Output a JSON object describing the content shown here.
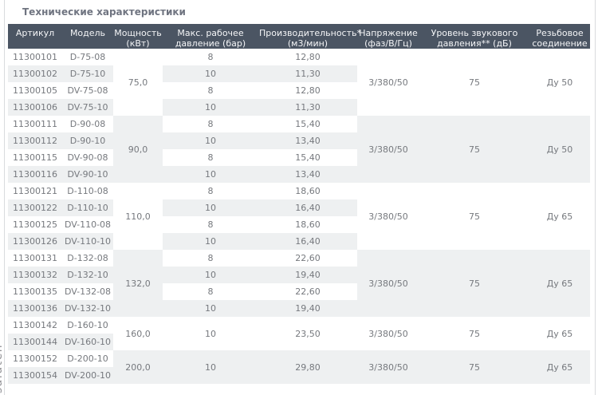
{
  "page": {
    "title": "Технические характеристики",
    "watermark": "saluteh"
  },
  "colors": {
    "header_bg": "#4b5563",
    "header_text": "#f4f5f7",
    "row_bg": "#ffffff",
    "row_alt_bg": "#eef0f1",
    "body_text": "#76797e",
    "title_text": "#6f7480",
    "page_border": "#d9dbdd",
    "watermark_text": "#909094"
  },
  "table": {
    "columns": [
      {
        "id": "article",
        "label": "Артикул"
      },
      {
        "id": "model",
        "label": "Модель"
      },
      {
        "id": "power",
        "label": "Мощность\n(кВт)"
      },
      {
        "id": "pressure",
        "label": "Макс. рабочее\nдавление (бар)"
      },
      {
        "id": "capacity",
        "label": "Производительность*\n(м3/мин)"
      },
      {
        "id": "voltage",
        "label": "Напряжение\n(фаз/В/Гц)"
      },
      {
        "id": "noise",
        "label": "Уровень звукового\nдавления** (дБ)"
      },
      {
        "id": "connection",
        "label": "Резьбовое\nсоединение"
      }
    ],
    "groups": [
      {
        "power": "75,0",
        "voltage": "3/380/50",
        "noise": "75",
        "connection": "Ду 50",
        "shaded": false,
        "rows": [
          {
            "article": "11300101",
            "model": "D-75-08",
            "pressure": "8",
            "capacity": "12,80"
          },
          {
            "article": "11300102",
            "model": "D-75-10",
            "pressure": "10",
            "capacity": "11,30"
          },
          {
            "article": "11300105",
            "model": "DV-75-08",
            "pressure": "8",
            "capacity": "12,80"
          },
          {
            "article": "11300106",
            "model": "DV-75-10",
            "pressure": "10",
            "capacity": "11,30"
          }
        ]
      },
      {
        "power": "90,0",
        "voltage": "3/380/50",
        "noise": "75",
        "connection": "Ду 50",
        "shaded": true,
        "rows": [
          {
            "article": "11300111",
            "model": "D-90-08",
            "pressure": "8",
            "capacity": "15,40"
          },
          {
            "article": "11300112",
            "model": "D-90-10",
            "pressure": "10",
            "capacity": "13,40"
          },
          {
            "article": "11300115",
            "model": "DV-90-08",
            "pressure": "8",
            "capacity": "15,40"
          },
          {
            "article": "11300116",
            "model": "DV-90-10",
            "pressure": "10",
            "capacity": "13,40"
          }
        ]
      },
      {
        "power": "110,0",
        "voltage": "3/380/50",
        "noise": "75",
        "connection": "Ду 65",
        "shaded": false,
        "rows": [
          {
            "article": "11300121",
            "model": "D-110-08",
            "pressure": "8",
            "capacity": "18,60"
          },
          {
            "article": "11300122",
            "model": "D-110-10",
            "pressure": "10",
            "capacity": "16,40"
          },
          {
            "article": "11300125",
            "model": "DV-110-08",
            "pressure": "8",
            "capacity": "18,60"
          },
          {
            "article": "11300126",
            "model": "DV-110-10",
            "pressure": "10",
            "capacity": "16,40"
          }
        ]
      },
      {
        "power": "132,0",
        "voltage": "3/380/50",
        "noise": "75",
        "connection": "Ду 65",
        "shaded": true,
        "rows": [
          {
            "article": "11300131",
            "model": "D-132-08",
            "pressure": "8",
            "capacity": "22,60"
          },
          {
            "article": "11300132",
            "model": "D-132-10",
            "pressure": "10",
            "capacity": "19,40"
          },
          {
            "article": "11300135",
            "model": "DV-132-08",
            "pressure": "8",
            "capacity": "22,60"
          },
          {
            "article": "11300136",
            "model": "DV-132-10",
            "pressure": "10",
            "capacity": "19,40"
          }
        ]
      },
      {
        "power": "160,0",
        "pressure": "10",
        "capacity": "23,50",
        "voltage": "3/380/50",
        "noise": "75",
        "connection": "Ду 65",
        "shaded": false,
        "rows": [
          {
            "article": "11300142",
            "model": "D-160-10"
          },
          {
            "article": "11300144",
            "model": "DV-160-10"
          }
        ]
      },
      {
        "power": "200,0",
        "pressure": "10",
        "capacity": "29,80",
        "voltage": "3/380/50",
        "noise": "75",
        "connection": "Ду 65",
        "shaded": true,
        "rows": [
          {
            "article": "11300152",
            "model": "D-200-10"
          },
          {
            "article": "11300154",
            "model": "DV-200-10"
          }
        ]
      }
    ]
  }
}
